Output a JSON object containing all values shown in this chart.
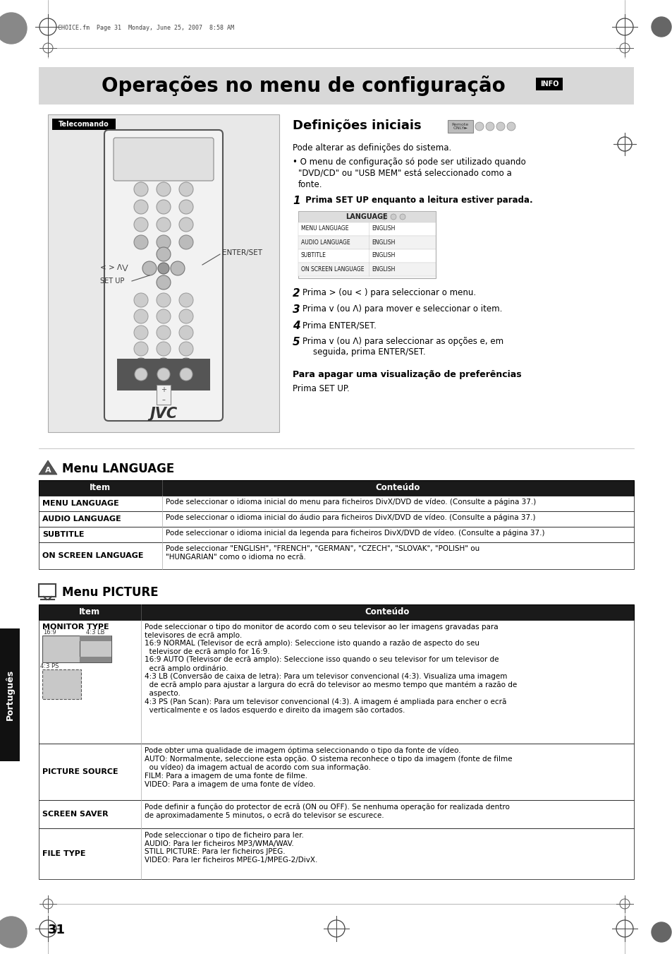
{
  "page_bg": "#ffffff",
  "top_bar_text": "CHOICE.fm  Page 31  Monday, June 25, 2007  8:58 AM",
  "header_title": "Operações no menu de configuração",
  "header_info_tag": "INFO",
  "remote_label": "Telecomando",
  "section1_title": "Definições iniciais",
  "lang_menu_title": "Menu LANGUAGE",
  "lang_table_header": [
    "Item",
    "Conteúdo"
  ],
  "lang_table_rows": [
    [
      "MENU LANGUAGE",
      "Pode seleccionar o idioma inicial do menu para ficheiros DivX/DVD de vídeo. (Consulte a página 37.)"
    ],
    [
      "AUDIO LANGUAGE",
      "Pode seleccionar o idioma inicial do áudio para ficheiros DivX/DVD de vídeo. (Consulte a página 37.)"
    ],
    [
      "SUBTITLE",
      "Pode seleccionar o idioma inicial da legenda para ficheiros DivX/DVD de vídeo. (Consulte a página 37.)"
    ],
    [
      "ON SCREEN LANGUAGE",
      "Pode seleccionar \"ENGLISH\", \"FRENCH\", \"GERMAN\", \"CZECH\", \"SLOVAK\", \"POLISH\" ou\n\"HUNGARIAN\" como o idioma no ecrã."
    ]
  ],
  "pic_menu_title": "Menu PICTURE",
  "pic_table_header": [
    "Item",
    "Conteúdo"
  ],
  "pic_table_rows": [
    [
      "MONITOR TYPE",
      "Pode seleccionar o tipo do monitor de acordo com o seu televisor ao ler imagens gravadas para\ntelevisores de ecrã amplo.\n16:9 NORMAL (Televisor de ecrã amplo): Seleccione isto quando a razão de aspecto do seu\n  televisor de ecrã amplo for 16:9.\n16:9 AUTO (Televisor de ecrã amplo): Seleccione isso quando o seu televisor for um televisor de\n  ecrã amplo ordinário.\n4:3 LB (Conversão de caixa de letra): Para um televisor convencional (4:3). Visualiza uma imagem\n  de ecrã amplo para ajustar a largura do ecrã do televisor ao mesmo tempo que mantém a razão de\n  aspecto.\n4:3 PS (Pan Scan): Para um televisor convencional (4:3). A imagem é ampliada para encher o ecrã\n  verticalmente e os lados esquerdo e direito da imagem são cortados."
    ],
    [
      "PICTURE SOURCE",
      "Pode obter uma qualidade de imagem óptima seleccionando o tipo da fonte de vídeo.\nAUTO: Normalmente, seleccione esta opção. O sistema reconhece o tipo da imagem (fonte de filme\n  ou vídeo) da imagem actual de acordo com sua informação.\nFILM: Para a imagem de uma fonte de filme.\nVIDEO: Para a imagem de uma fonte de vídeo."
    ],
    [
      "SCREEN SAVER",
      "Pode definir a função do protector de ecrã (ON ou OFF). Se nenhuma operação for realizada dentro\nde aproximadamente 5 minutos, o ecrã do televisor se escurece."
    ],
    [
      "FILE TYPE",
      "Pode seleccionar o tipo de ficheiro para ler.\nAUDIO: Para ler ficheiros MP3/WMA/WAV.\nSTILL PICTURE: Para ler ficheiros JPEG.\nVIDEO: Para ler ficheiros MPEG-1/MPEG-2/DivX."
    ]
  ],
  "side_tab_text": "Português",
  "page_number": "31"
}
